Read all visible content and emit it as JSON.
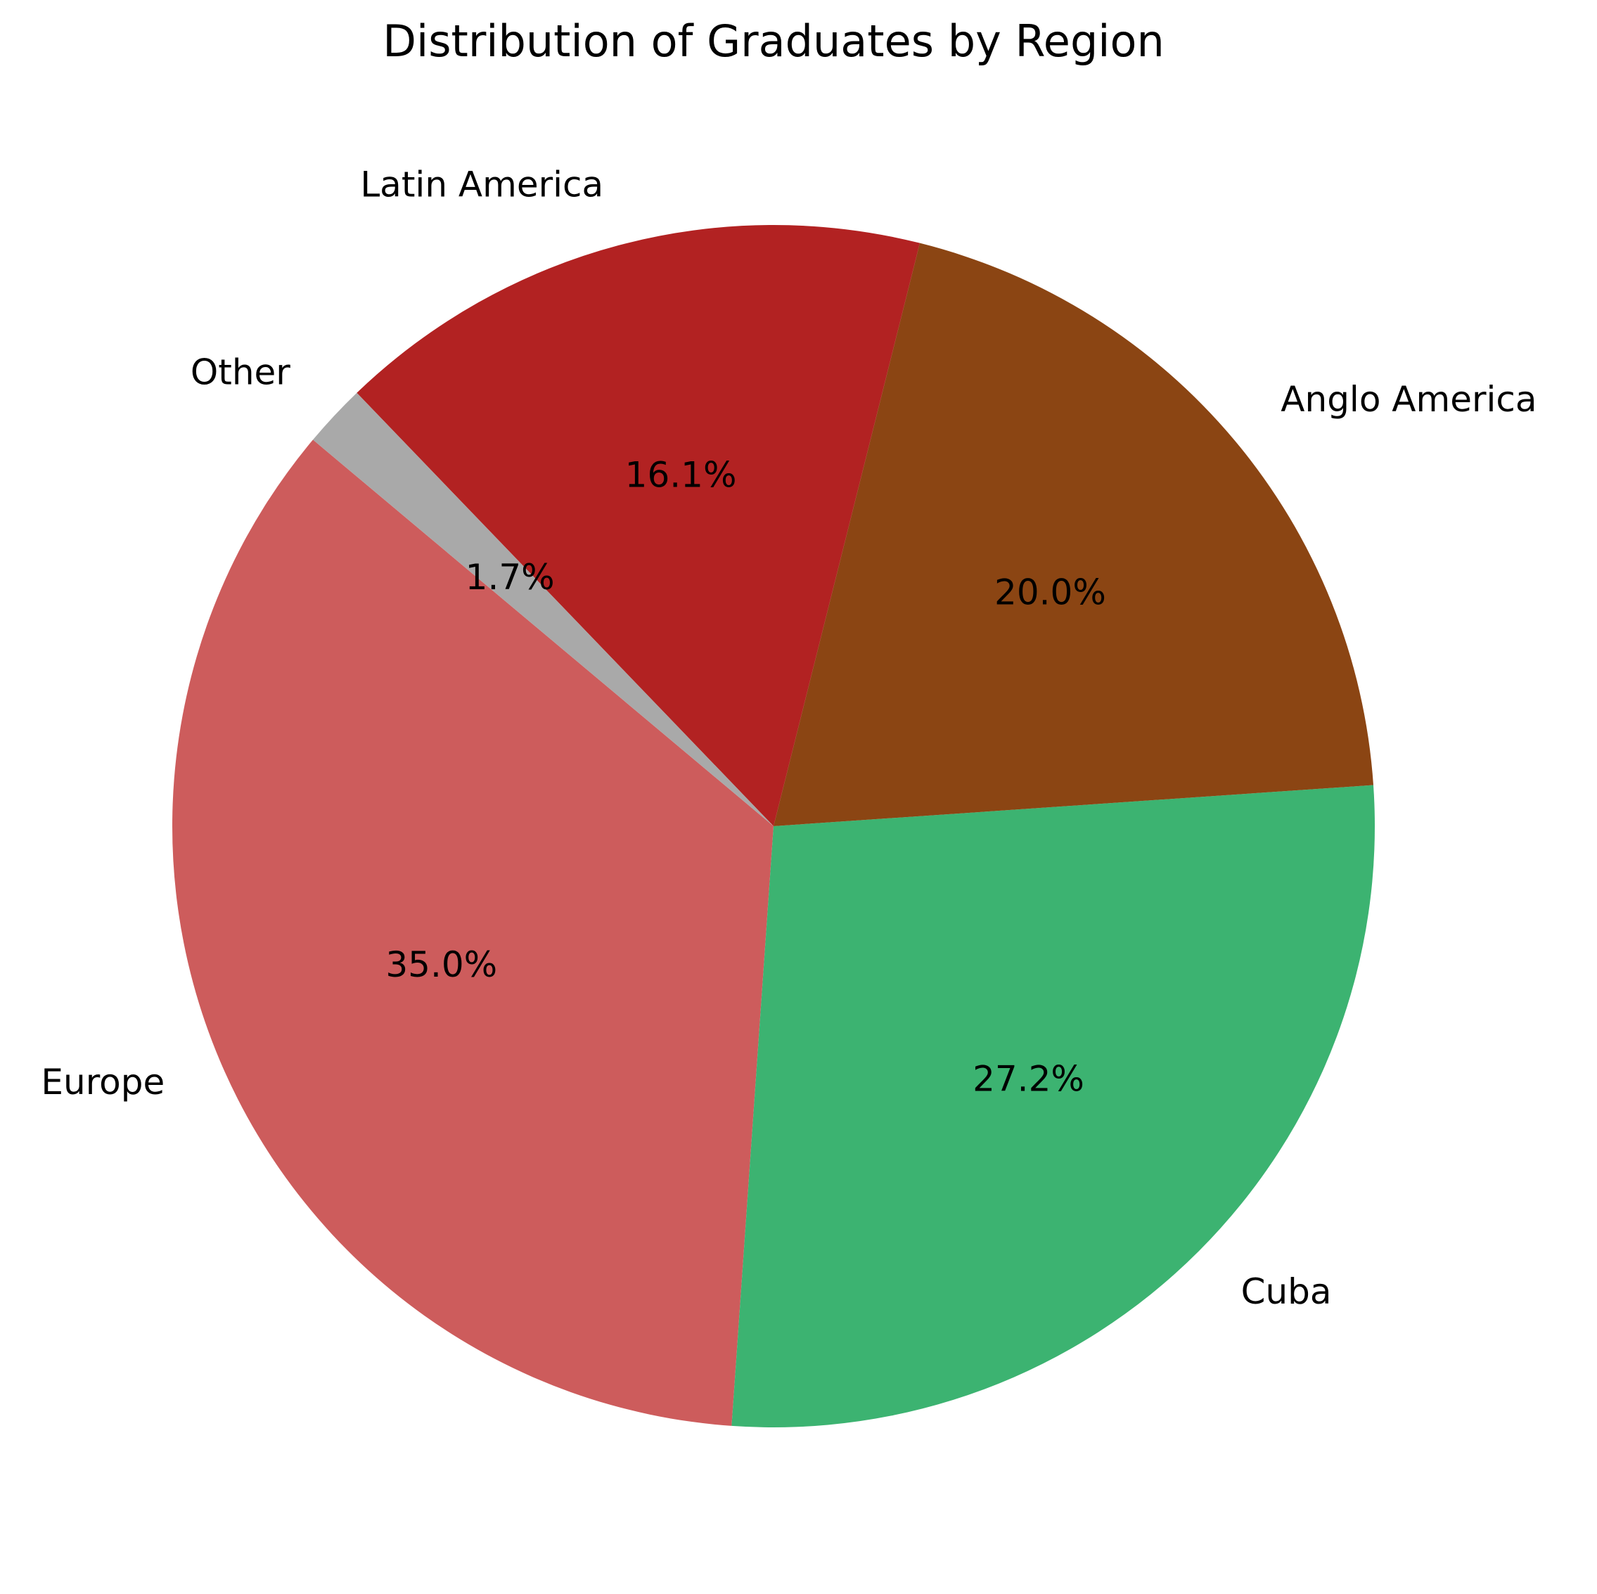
{
  "chart_data": {
    "type": "pie",
    "title": "Distribution of Graduates by Region",
    "start_angle_deg": 140,
    "direction": "counterclockwise",
    "slices": [
      {
        "label": "Europe",
        "value": 35.0,
        "pct_label": "35.0%",
        "color": "#CD5C5C"
      },
      {
        "label": "Cuba",
        "value": 27.2,
        "pct_label": "27.2%",
        "color": "#3CB371"
      },
      {
        "label": "Anglo America",
        "value": 20.0,
        "pct_label": "20.0%",
        "color": "#8B4513"
      },
      {
        "label": "Latin America",
        "value": 16.1,
        "pct_label": "16.1%",
        "color": "#B22222"
      },
      {
        "label": "Other",
        "value": 1.7,
        "pct_label": "1.7%",
        "color": "#A9A9A9"
      }
    ],
    "legend": "none",
    "grid": false
  }
}
